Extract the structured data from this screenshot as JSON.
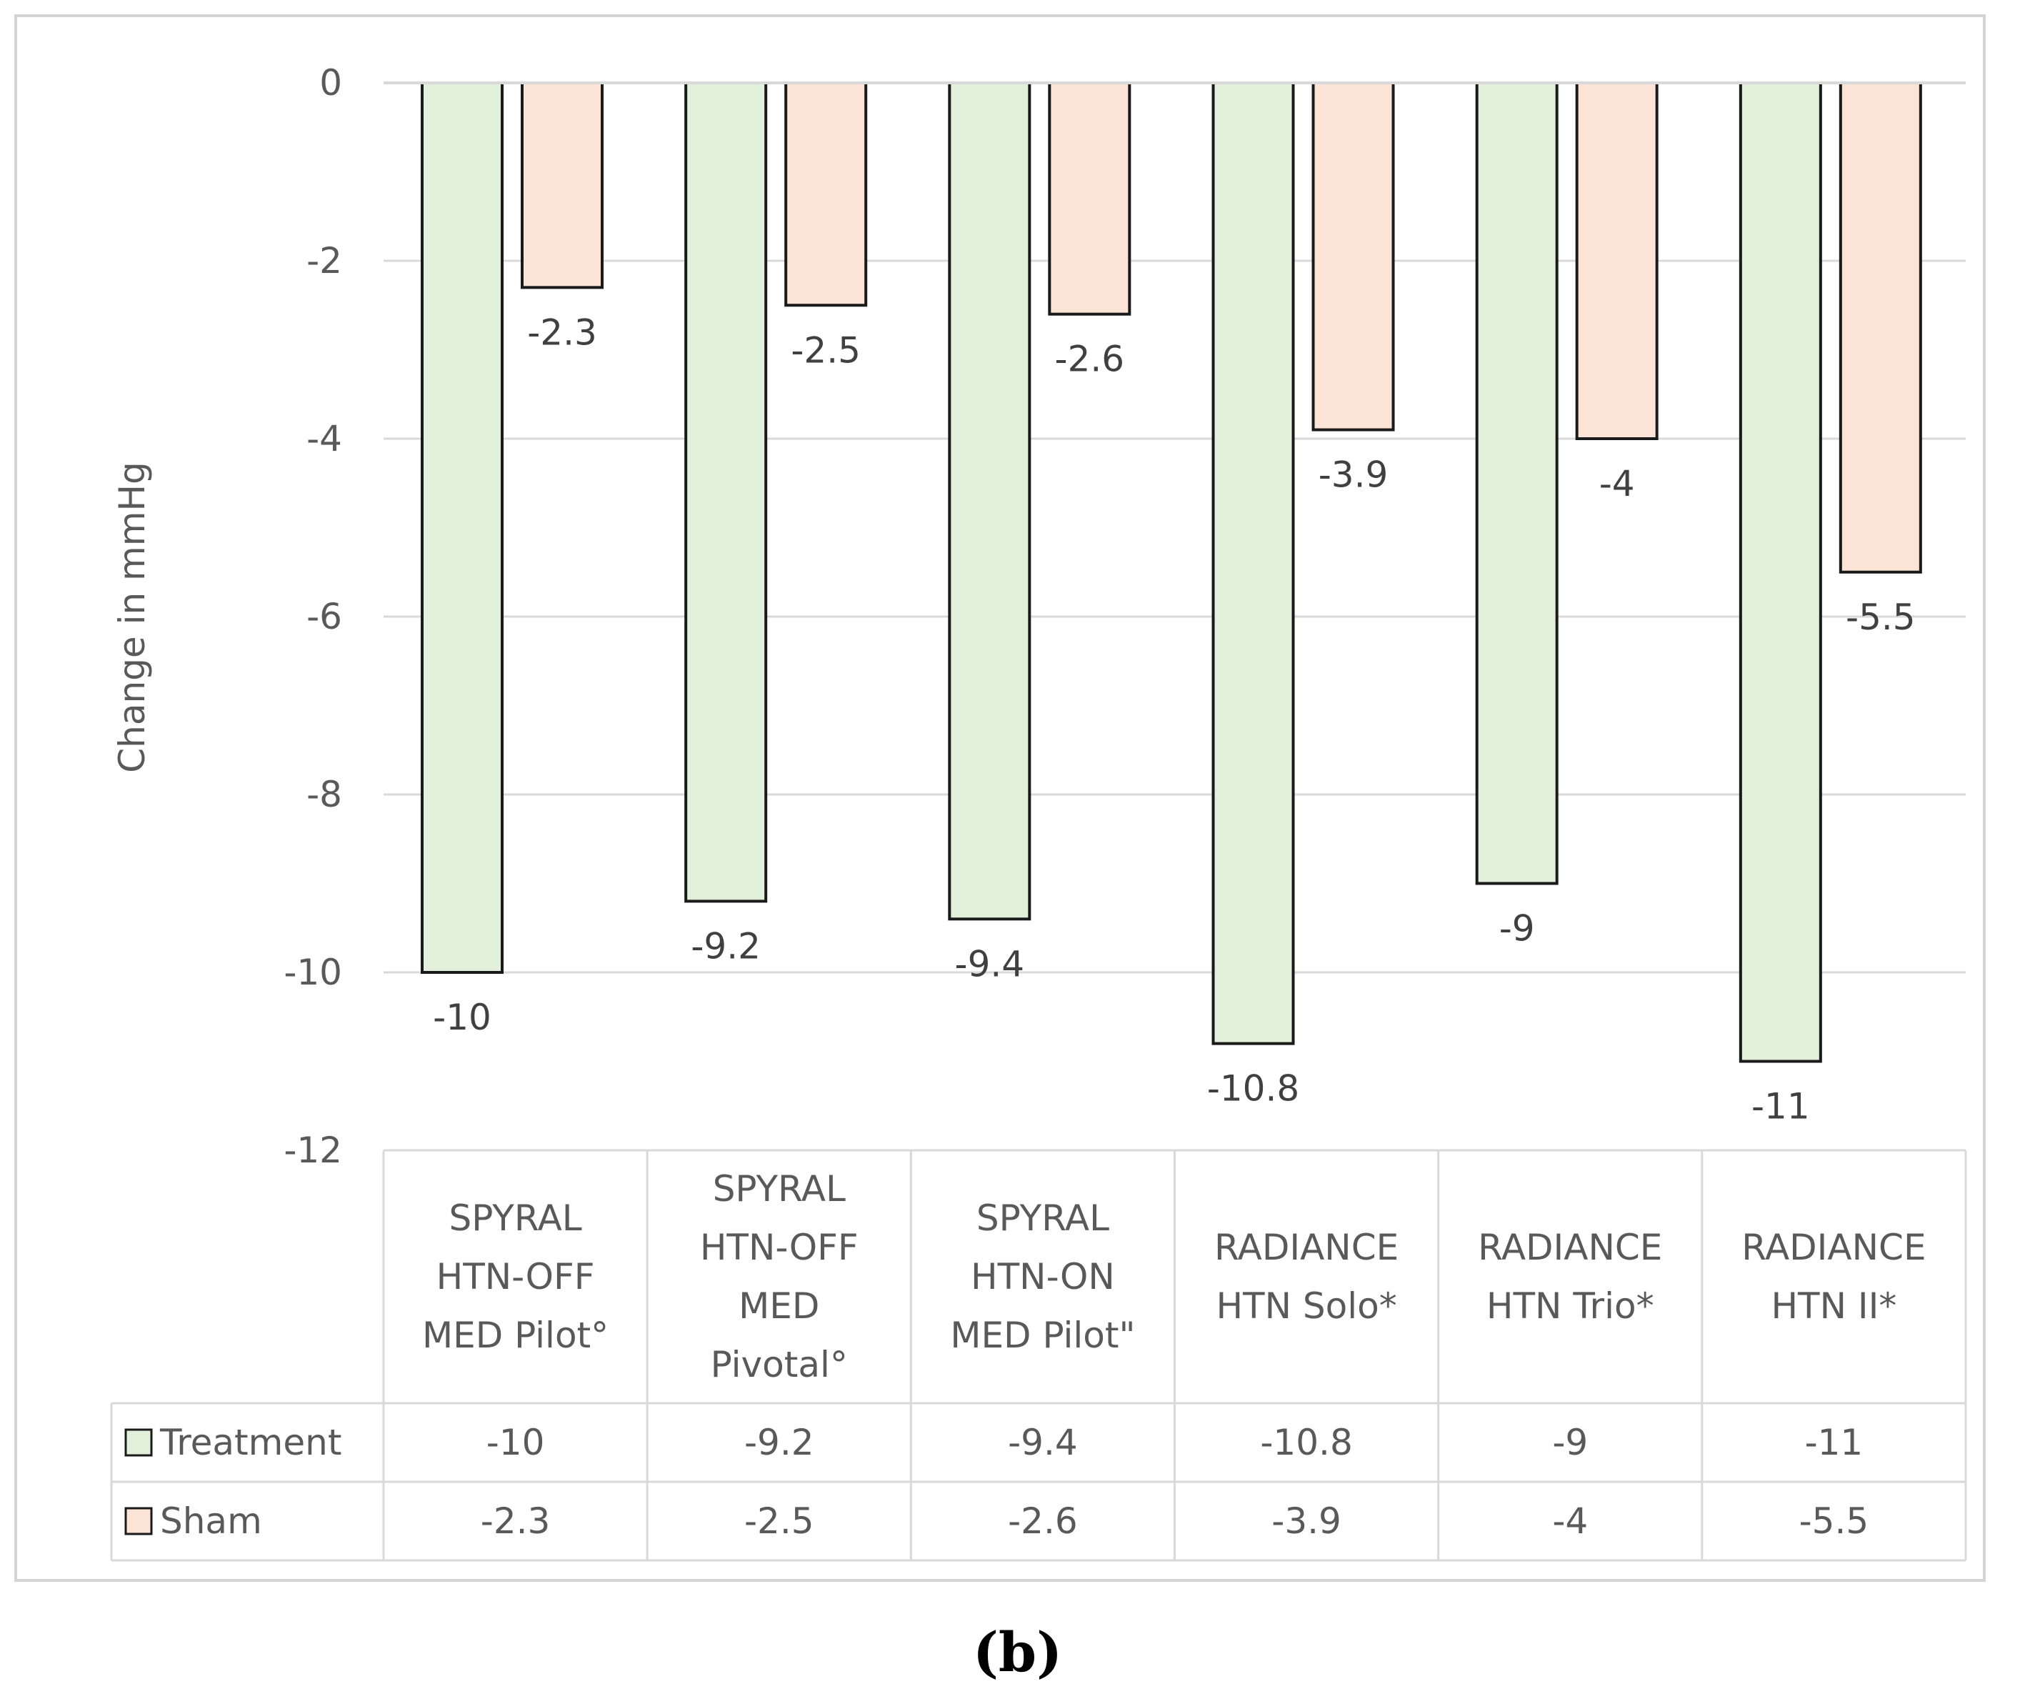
{
  "chart_data": {
    "type": "bar",
    "title": "",
    "xlabel": "",
    "ylabel": "Change in mmHg",
    "ylim": [
      -12,
      0
    ],
    "yticks": [
      0,
      -2,
      -4,
      -6,
      -8,
      -10,
      -12
    ],
    "grid": true,
    "legend": "data-table",
    "categories": [
      [
        "SPYRAL",
        "HTN-OFF",
        "MED Pilot°"
      ],
      [
        "SPYRAL",
        "HTN-OFF",
        "MED",
        "Pivotal°"
      ],
      [
        "SPYRAL",
        "HTN-ON",
        "MED Pilot\""
      ],
      [
        "RADIANCE",
        "HTN Solo*"
      ],
      [
        "RADIANCE",
        "HTN Trio*"
      ],
      [
        "RADIANCE",
        "HTN II*"
      ]
    ],
    "series": [
      {
        "name": "Treatment",
        "color": "#e2efda",
        "values": [
          -10,
          -9.2,
          -9.4,
          -10.8,
          -9,
          -11
        ]
      },
      {
        "name": "Sham",
        "color": "#fbe4d5",
        "values": [
          -2.3,
          -2.5,
          -2.6,
          -3.9,
          -4,
          -5.5
        ]
      }
    ]
  },
  "caption": "(b)"
}
